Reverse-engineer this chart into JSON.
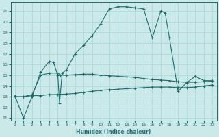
{
  "xlabel": "Humidex (Indice chaleur)",
  "xlim": [
    -0.5,
    23.5
  ],
  "ylim": [
    10.8,
    21.8
  ],
  "yticks": [
    11,
    12,
    13,
    14,
    15,
    16,
    17,
    18,
    19,
    20,
    21
  ],
  "xticks": [
    0,
    1,
    2,
    3,
    4,
    5,
    6,
    7,
    8,
    9,
    10,
    11,
    12,
    13,
    14,
    15,
    16,
    17,
    18,
    19,
    20,
    21,
    22,
    23
  ],
  "bg_color": "#cce9e9",
  "line_color": "#1e6b6b",
  "grid_color": "#a8d8d8",
  "line1_x": [
    0,
    1,
    2,
    3,
    4,
    4.5,
    5,
    5.2,
    5.5,
    6,
    7,
    8,
    9,
    10,
    11,
    12,
    13,
    14,
    15,
    16,
    17,
    17.5,
    18,
    19,
    20,
    21,
    22,
    23
  ],
  "line1_y": [
    13.1,
    11.0,
    13.0,
    15.3,
    16.3,
    16.2,
    15.0,
    12.4,
    15.2,
    15.5,
    17.0,
    17.8,
    18.7,
    19.8,
    21.2,
    21.4,
    21.4,
    21.3,
    21.2,
    18.5,
    21.0,
    20.8,
    18.5,
    13.5,
    14.3,
    14.9,
    14.5,
    14.5
  ],
  "line2_x": [
    0,
    1,
    2,
    3,
    4,
    5,
    5.3,
    6,
    7,
    8,
    9,
    10,
    11,
    12,
    13,
    14,
    15,
    16,
    17,
    18,
    19,
    20,
    21,
    22,
    23
  ],
  "line2_y": [
    13.0,
    13.0,
    13.2,
    15.0,
    15.2,
    15.2,
    15.0,
    15.0,
    15.05,
    15.1,
    15.1,
    15.0,
    14.95,
    14.9,
    14.85,
    14.8,
    14.7,
    14.6,
    14.55,
    14.5,
    14.4,
    14.35,
    14.35,
    14.4,
    14.45
  ],
  "line3_x": [
    0,
    1,
    2,
    3,
    4,
    5,
    6,
    7,
    8,
    9,
    10,
    11,
    12,
    13,
    14,
    15,
    16,
    17,
    18,
    19,
    20,
    21,
    22,
    23
  ],
  "line3_y": [
    13.0,
    13.0,
    13.1,
    13.1,
    13.2,
    13.2,
    13.25,
    13.3,
    13.4,
    13.5,
    13.6,
    13.65,
    13.7,
    13.75,
    13.8,
    13.85,
    13.9,
    13.9,
    13.9,
    13.85,
    13.85,
    13.9,
    14.0,
    14.1
  ]
}
